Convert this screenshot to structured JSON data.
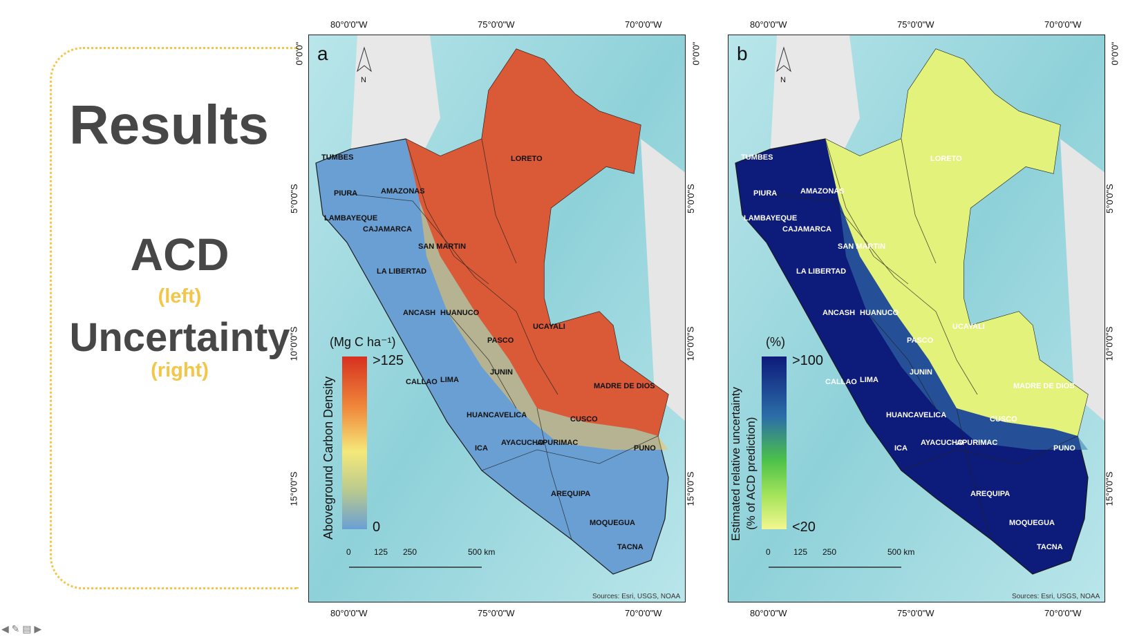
{
  "slide": {
    "title": "Results",
    "acd": "ACD",
    "acd_note": "(left)",
    "uncertainty": "Uncertainty",
    "uncertainty_note": "(right)"
  },
  "maps": [
    {
      "panel_letter": "a",
      "legend_unit": "(Mg C ha⁻¹)",
      "legend_title": "Aboveground Carbon Density",
      "legend_max": ">125",
      "legend_min": "0"
    },
    {
      "panel_letter": "b",
      "legend_unit": "(%)",
      "legend_title_line1": "Estimated relative uncertainty",
      "legend_title_line2": "(% of ACD prediction)",
      "legend_max": ">100",
      "legend_min": "<20"
    }
  ],
  "scale_bar": {
    "labels": [
      "0",
      "125",
      "250",
      "500 km"
    ]
  },
  "north_label": "N",
  "source": "Sources: Esri, USGS, NOAA",
  "graticule": {
    "lon_labels": [
      "80°0'0\"W",
      "75°0'0\"W",
      "70°0'0\"W"
    ],
    "lat_labels": [
      "0°0'0\"",
      "5°0'0\"S",
      "10°0'0\"S",
      "15°0'0\"S"
    ]
  },
  "regions": [
    "TUMBES",
    "PIURA",
    "LAMBAYEQUE",
    "CAJAMARCA",
    "AMAZONAS",
    "LORETO",
    "SAN MARTIN",
    "LA LIBERTAD",
    "ANCASH",
    "HUANUCO",
    "PASCO",
    "UCAYALI",
    "CALLAO",
    "LIMA",
    "JUNIN",
    "MADRE DE DIOS",
    "HUANCAVELICA",
    "CUSCO",
    "ICA",
    "AYACUCHO",
    "APURIMAC",
    "PUNO",
    "AREQUIPA",
    "MOQUEGUA",
    "TACNA"
  ],
  "colors": {
    "accent": "#f2c649",
    "title": "#474747",
    "acd_high": "#d7301f",
    "acd_low": "#6a9fd4",
    "unc_high": "#0d1b7a",
    "unc_low": "#f3f78f",
    "ocean": "#9fd6dd"
  },
  "nav_icons": [
    "arrow-left-icon",
    "pen-icon",
    "comment-icon",
    "arrow-right-icon"
  ]
}
